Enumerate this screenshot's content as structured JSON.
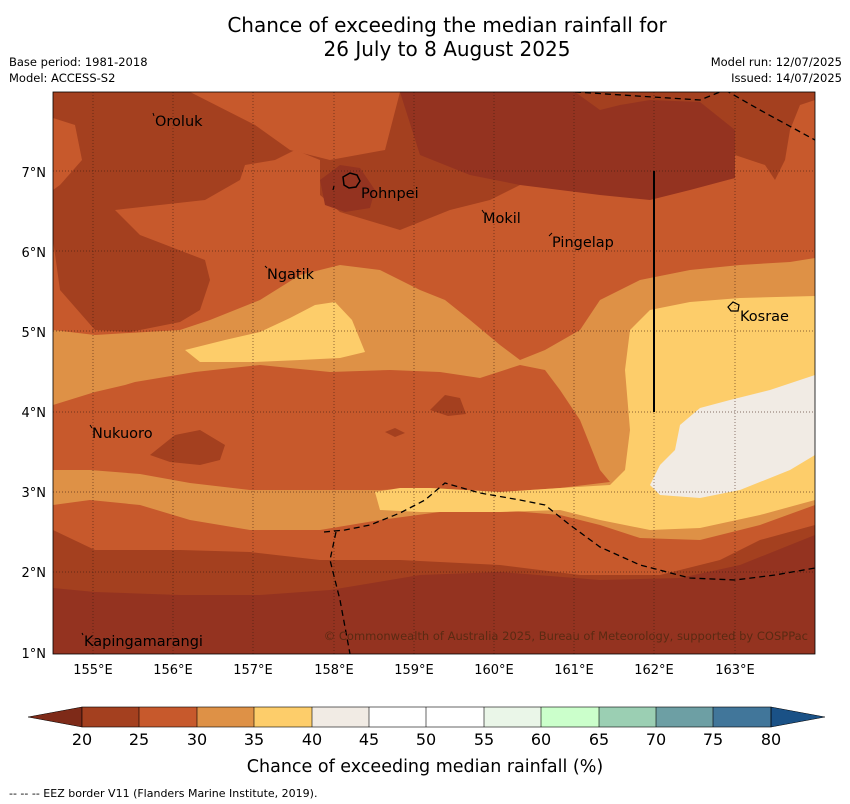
{
  "title": {
    "line1": "Chance of exceeding the median rainfall for",
    "line2": "26 July to 8 August 2025"
  },
  "meta": {
    "base_period": "Base period: 1981-2018",
    "model": "Model: ACCESS-S2",
    "model_run": "Model run: 12/07/2025",
    "issued": "Issued: 14/07/2025"
  },
  "map": {
    "lon_range": [
      154.5,
      164
    ],
    "lat_range": [
      1,
      8
    ],
    "lon_ticks": [
      "155°E",
      "156°E",
      "157°E",
      "158°E",
      "159°E",
      "160°E",
      "161°E",
      "162°E",
      "163°E"
    ],
    "lat_ticks": [
      "1°N",
      "2°N",
      "3°N",
      "4°N",
      "5°N",
      "6°N",
      "7°N"
    ],
    "places": [
      {
        "name": "Oroluk",
        "lon": 155.65,
        "lat": 7.6
      },
      {
        "name": "Pohnpei",
        "lon": 158.35,
        "lat": 6.85
      },
      {
        "name": "Mokil",
        "lon": 159.8,
        "lat": 6.6
      },
      {
        "name": "Pingelap",
        "lon": 160.7,
        "lat": 6.3
      },
      {
        "name": "Ngatik",
        "lon": 157.15,
        "lat": 5.8
      },
      {
        "name": "Kosrae",
        "lon": 162.95,
        "lat": 5.3
      },
      {
        "name": "Nukuoro",
        "lon": 154.9,
        "lat": 3.8
      },
      {
        "name": "Kapingamarangi",
        "lon": 154.85,
        "lat": 1.25
      }
    ],
    "copyright": "© Commonwealth of Australia 2025, Bureau of Meteorology, supported by COSPPac"
  },
  "colorbar": {
    "ticks": [
      "20",
      "25",
      "30",
      "35",
      "40",
      "45",
      "50",
      "55",
      "60",
      "65",
      "70",
      "75",
      "80"
    ],
    "colors": [
      "#a4401f",
      "#c7592c",
      "#de9146",
      "#fdcd6a",
      "#f1ebe4",
      "#ffffff",
      "#ffffff",
      "#eaf6e8",
      "#cbffcb",
      "#9bcfb3",
      "#6d9fa4",
      "#41769a"
    ],
    "low_color": "#7e2a18",
    "high_color": "#1a5186",
    "title": "Chance of exceeding median rainfall (%)"
  },
  "footnote": "--  --  -- EEZ border V11 (Flanders Marine Institute, 2019).",
  "colors": {
    "lt20": "#943320",
    "c20_25": "#a4401f",
    "c25_30": "#c7592c",
    "c30_35": "#de9146",
    "c35_40": "#fdcd6a",
    "c40_45": "#f1ebe4"
  }
}
